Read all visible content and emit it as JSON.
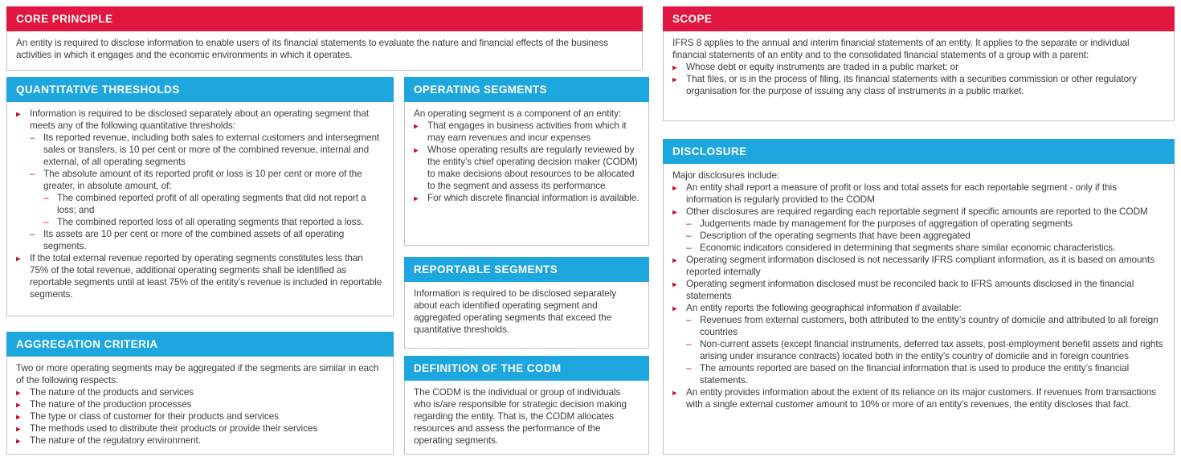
{
  "colors": {
    "header_red": "#E1173F",
    "header_blue": "#1EA6DF",
    "bullet_red": "#C8102E",
    "body_text": "#3E3E3D",
    "panel_border": "#C4C4C4"
  },
  "panels": {
    "core_principle": {
      "title": "CORE PRINCIPLE",
      "items": [
        {
          "bullet": null,
          "level": 0,
          "text": "An entity is required to disclose information to enable users of its financial statements to evaluate the nature and financial effects of the business activities in which it engages and the economic environments in which it operates."
        }
      ]
    },
    "quantitative_thresholds": {
      "title": "QUANTITATIVE THRESHOLDS",
      "items": [
        {
          "bullet": "arrow",
          "level": 1,
          "text": "Information is required to be disclosed separately about an operating segment that meets any of the following quantitative thresholds:"
        },
        {
          "bullet": "dash",
          "level": 2,
          "text": "Its reported revenue, including both sales to external customers and intersegment sales or transfers, is 10 per cent or more of the combined revenue, internal and external, of all operating segments"
        },
        {
          "bullet": "dash",
          "level": 2,
          "text": "The absolute amount of its reported profit or loss is 10 per cent or more of the greater, in absolute amount, of:"
        },
        {
          "bullet": "dash",
          "level": 3,
          "text": "The combined reported profit of all operating segments that did not report a loss; and"
        },
        {
          "bullet": "dash",
          "level": 3,
          "text": "The combined reported loss of all operating segments that reported a loss."
        },
        {
          "bullet": "dash",
          "level": 2,
          "text": "Its assets are 10 per cent or more of the combined assets of all operating segments."
        },
        {
          "bullet": "arrow",
          "level": 1,
          "text": "If the total external revenue reported by operating segments constitutes less than 75% of the total revenue, additional operating segments shall be identified as reportable segments until at least 75% of the entity’s revenue is included in reportable segments."
        }
      ]
    },
    "aggregation_criteria": {
      "title": "AGGREGATION CRITERIA",
      "items": [
        {
          "bullet": null,
          "level": 0,
          "text": "Two or more operating segments may be aggregated if the segments are similar in each of the following respects:"
        },
        {
          "bullet": "arrow",
          "level": 1,
          "text": "The nature of the products and services"
        },
        {
          "bullet": "arrow",
          "level": 1,
          "text": "The nature of the production processes"
        },
        {
          "bullet": "arrow",
          "level": 1,
          "text": "The type or class of customer for their products and services"
        },
        {
          "bullet": "arrow",
          "level": 1,
          "text": "The methods used to distribute their products or provide their services"
        },
        {
          "bullet": "arrow",
          "level": 1,
          "text": "The nature of the regulatory environment."
        }
      ]
    },
    "operating_segments": {
      "title": "OPERATING SEGMENTS",
      "items": [
        {
          "bullet": null,
          "level": 0,
          "text": "An operating segment is a component of an entity:"
        },
        {
          "bullet": "arrow",
          "level": 1,
          "text": "That engages in business activities from which it may earn revenues and incur expenses"
        },
        {
          "bullet": "arrow",
          "level": 1,
          "text": "Whose operating results are regularly reviewed by the entity’s chief operating decision maker (CODM) to make decisions about resources to be allocated to the segment and assess its performance"
        },
        {
          "bullet": "arrow",
          "level": 1,
          "text": "For which discrete financial information is available."
        }
      ]
    },
    "reportable_segments": {
      "title": "REPORTABLE SEGMENTS",
      "items": [
        {
          "bullet": null,
          "level": 0,
          "text": "Information is required to be disclosed separately about each identified operating segment and aggregated operating segments that exceed the quantitative thresholds."
        }
      ]
    },
    "definition_of_the_codm": {
      "title": "DEFINITION OF THE CODM",
      "items": [
        {
          "bullet": null,
          "level": 0,
          "text": "The CODM is the individual or group of individuals who is/are responsible for strategic decision making regarding the entity. That is, the CODM allocates resources and assess the performance of the operating segments."
        }
      ]
    },
    "scope": {
      "title": "SCOPE",
      "items": [
        {
          "bullet": null,
          "level": 0,
          "text": "IFRS 8 applies to the annual and interim financial statements of an entity. It applies to the separate or individual financial statements of an entity and to the consolidated financial statements of a group with a parent:"
        },
        {
          "bullet": "arrow",
          "level": 1,
          "text": "Whose debt or equity instruments are traded in a public market; or"
        },
        {
          "bullet": "arrow",
          "level": 1,
          "text": "That files, or is in the process of filing, its financial statements with a securities commission or other regulatory organisation for the purpose of issuing any class of instruments in a public market."
        }
      ]
    },
    "disclosure": {
      "title": "DISCLOSURE",
      "items": [
        {
          "bullet": null,
          "level": 0,
          "text": "Major disclosures include:"
        },
        {
          "bullet": "arrow",
          "level": 1,
          "text": "An entity shall report a measure of profit or loss and total assets for each reportable segment - only if this information is regularly provided to the CODM"
        },
        {
          "bullet": "arrow",
          "level": 1,
          "text": "Other disclosures are required regarding each reportable segment if specific amounts are reported to the CODM"
        },
        {
          "bullet": "dash",
          "level": 2,
          "text": "Judgements made by management for the purposes of aggregation of operating segments"
        },
        {
          "bullet": "dash",
          "level": 2,
          "text": "Description of the operating segments that have been aggregated"
        },
        {
          "bullet": "dash",
          "level": 2,
          "text": "Economic indicators considered in determining that segments share similar economic characteristics."
        },
        {
          "bullet": "arrow",
          "level": 1,
          "text": "Operating segment information disclosed is not necessarily IFRS compliant information, as it is based on amounts reported internally"
        },
        {
          "bullet": "arrow",
          "level": 1,
          "text": "Operating segment information disclosed must be reconciled back to IFRS amounts disclosed in the financial statements"
        },
        {
          "bullet": "arrow",
          "level": 1,
          "text": "An entity reports the following geographical information if available:"
        },
        {
          "bullet": "dash",
          "level": 2,
          "text": "Revenues from external customers, both attributed to the entity’s country of domicile and attributed to all foreign countries"
        },
        {
          "bullet": "dash",
          "level": 2,
          "text": "Non-current assets (except financial instruments, deferred tax assets, post-employment benefit assets and rights arising under insurance contracts) located both in the entity’s country of domicile and in foreign countries"
        },
        {
          "bullet": "dash",
          "level": 2,
          "text": "The amounts reported are based on the financial information that is used to produce the entity’s financial statements."
        },
        {
          "bullet": "arrow",
          "level": 1,
          "text": "An entity provides information about the extent of its reliance on its major customers. If revenues from transactions with a single external customer amount to 10% or more of an entity’s revenues, the entity discloses that fact."
        }
      ]
    }
  }
}
